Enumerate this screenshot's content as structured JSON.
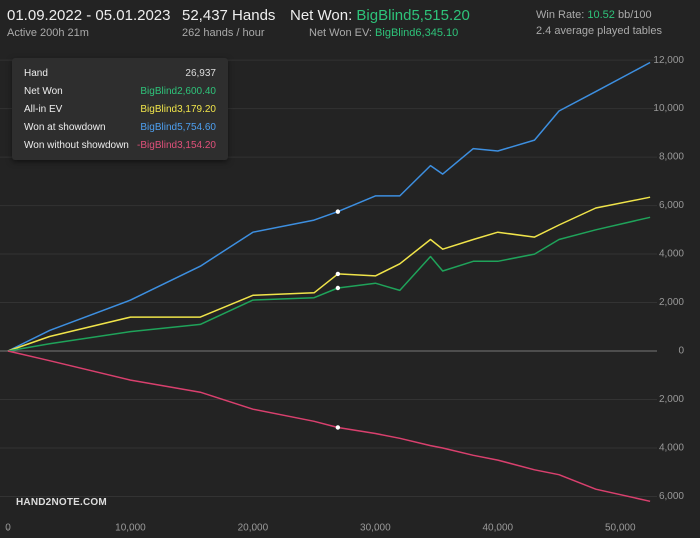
{
  "header": {
    "date_range": "01.09.2022 - 05.01.2023",
    "active": "Active 200h 21m",
    "hands": "52,437 Hands",
    "hands_per_hour": "262 hands / hour",
    "net_won_label": "Net Won:",
    "net_won_value": "BigBlind5,515.20",
    "net_won_ev_label": "Net Won  EV:",
    "net_won_ev_value": "BigBlind6,345.10",
    "win_rate_label": "Win Rate:",
    "win_rate_value": "10.52",
    "win_rate_unit": "bb/100",
    "tables": "2.4 average played tables"
  },
  "tooltip": {
    "rows": [
      {
        "label": "Hand",
        "value": "26,937"
      },
      {
        "label": "Net Won",
        "value": "BigBlind2,600.40"
      },
      {
        "label": "All-in EV",
        "value": "BigBlind3,179.20"
      },
      {
        "label": "Won at showdown",
        "value": "BigBlind5,754.60"
      },
      {
        "label": "Won without showdown",
        "value": "-BigBlind3,154.20"
      }
    ]
  },
  "logo": "HAND2NOTE.COM",
  "chart_data": {
    "type": "line",
    "x": [
      0,
      3400,
      10000,
      15700,
      20000,
      25000,
      26937,
      30000,
      32000,
      34500,
      35500,
      38000,
      40000,
      43000,
      45000,
      48000,
      52437
    ],
    "series": [
      {
        "name": "Won at showdown",
        "color": "#3d8fe0",
        "values": [
          0,
          850,
          2100,
          3500,
          4900,
          5400,
          5750,
          6400,
          6400,
          7650,
          7300,
          8350,
          8250,
          8700,
          9900,
          10700,
          11900
        ]
      },
      {
        "name": "All-in EV",
        "color": "#f0e44a",
        "values": [
          0,
          600,
          1400,
          1400,
          2300,
          2400,
          3180,
          3100,
          3600,
          4600,
          4200,
          4600,
          4900,
          4700,
          5200,
          5900,
          6345
        ]
      },
      {
        "name": "Net Won",
        "color": "#1fa35a",
        "values": [
          0,
          300,
          800,
          1100,
          2100,
          2200,
          2600,
          2800,
          2500,
          3900,
          3300,
          3700,
          3700,
          4000,
          4600,
          5000,
          5515
        ]
      },
      {
        "name": "Won without showdown",
        "color": "#d9406e",
        "values": [
          0,
          -400,
          -1200,
          -1700,
          -2400,
          -2900,
          -3154,
          -3400,
          -3600,
          -3900,
          -4000,
          -4300,
          -4500,
          -4900,
          -5100,
          -5700,
          -6200
        ]
      }
    ],
    "highlight_index": 6,
    "xlim": [
      0,
      53000
    ],
    "ylim": [
      -7300,
      12500
    ],
    "xticks": [
      0,
      {
        "value": 10000,
        "label": "10,000"
      },
      {
        "value": 20000,
        "label": "20,000"
      },
      {
        "value": 30000,
        "label": "30,000"
      },
      {
        "value": 40000,
        "label": "40,000"
      },
      {
        "value": 50000,
        "label": "50,000"
      }
    ],
    "yticks": [
      {
        "value": -6000,
        "label": "6,000"
      },
      {
        "value": -4000,
        "label": "4,000"
      },
      {
        "value": -2000,
        "label": "2,000"
      },
      0,
      {
        "value": 2000,
        "label": "2,000"
      },
      {
        "value": 4000,
        "label": "4,000"
      },
      {
        "value": 6000,
        "label": "6,000"
      },
      {
        "value": 8000,
        "label": "8,000"
      },
      {
        "value": 10000,
        "label": "10,000"
      },
      {
        "value": 12000,
        "label": "12,000"
      }
    ],
    "grid": true
  }
}
